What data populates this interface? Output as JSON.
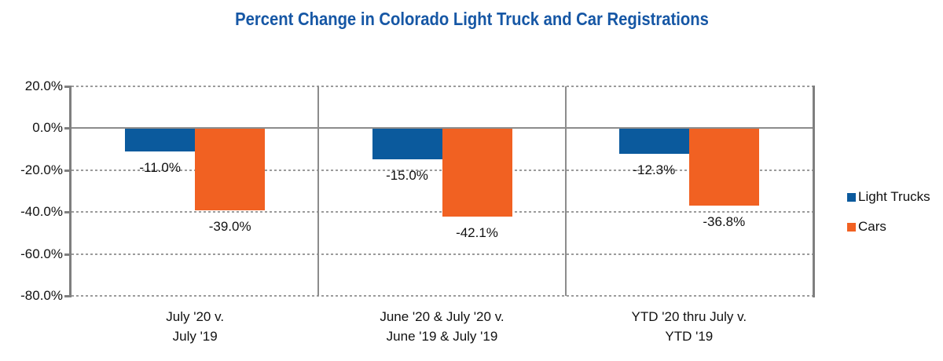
{
  "colors": {
    "title": "#1657a5",
    "light_trucks": "#0b5a9d",
    "cars": "#f16122",
    "axis": "#7f7f7f",
    "gridline": "#9b9b9b"
  },
  "chart_data": {
    "type": "bar",
    "title": "Percent Change in Colorado Light Truck and Car Registrations",
    "categories": [
      {
        "line1": "July '20 v.",
        "line2": "July '19"
      },
      {
        "line1": "June '20 & July '20 v.",
        "line2": "June '19 & July '19"
      },
      {
        "line1": "YTD '20 thru July v.",
        "line2": "YTD '19"
      }
    ],
    "series": [
      {
        "name": "Light Trucks",
        "color": "#0b5a9d",
        "values": [
          -11.0,
          -15.0,
          -12.3
        ],
        "labels": [
          "-11.0%",
          "-15.0%",
          "-12.3%"
        ]
      },
      {
        "name": "Cars",
        "color": "#f16122",
        "values": [
          -39.0,
          -42.1,
          -36.8
        ],
        "labels": [
          "-39.0%",
          "-42.1%",
          "-36.8%"
        ]
      }
    ],
    "y_axis": {
      "ylim": [
        -80,
        20
      ],
      "ticks": [
        {
          "label": "20.0%",
          "value": 20
        },
        {
          "label": "0.0%",
          "value": 0
        },
        {
          "label": "-20.0%",
          "value": -20
        },
        {
          "label": "-40.0%",
          "value": -40
        },
        {
          "label": "-60.0%",
          "value": -60
        },
        {
          "label": "-80.0%",
          "value": -80
        }
      ]
    },
    "legend_position": "right",
    "grid": "horizontal-dotted"
  }
}
